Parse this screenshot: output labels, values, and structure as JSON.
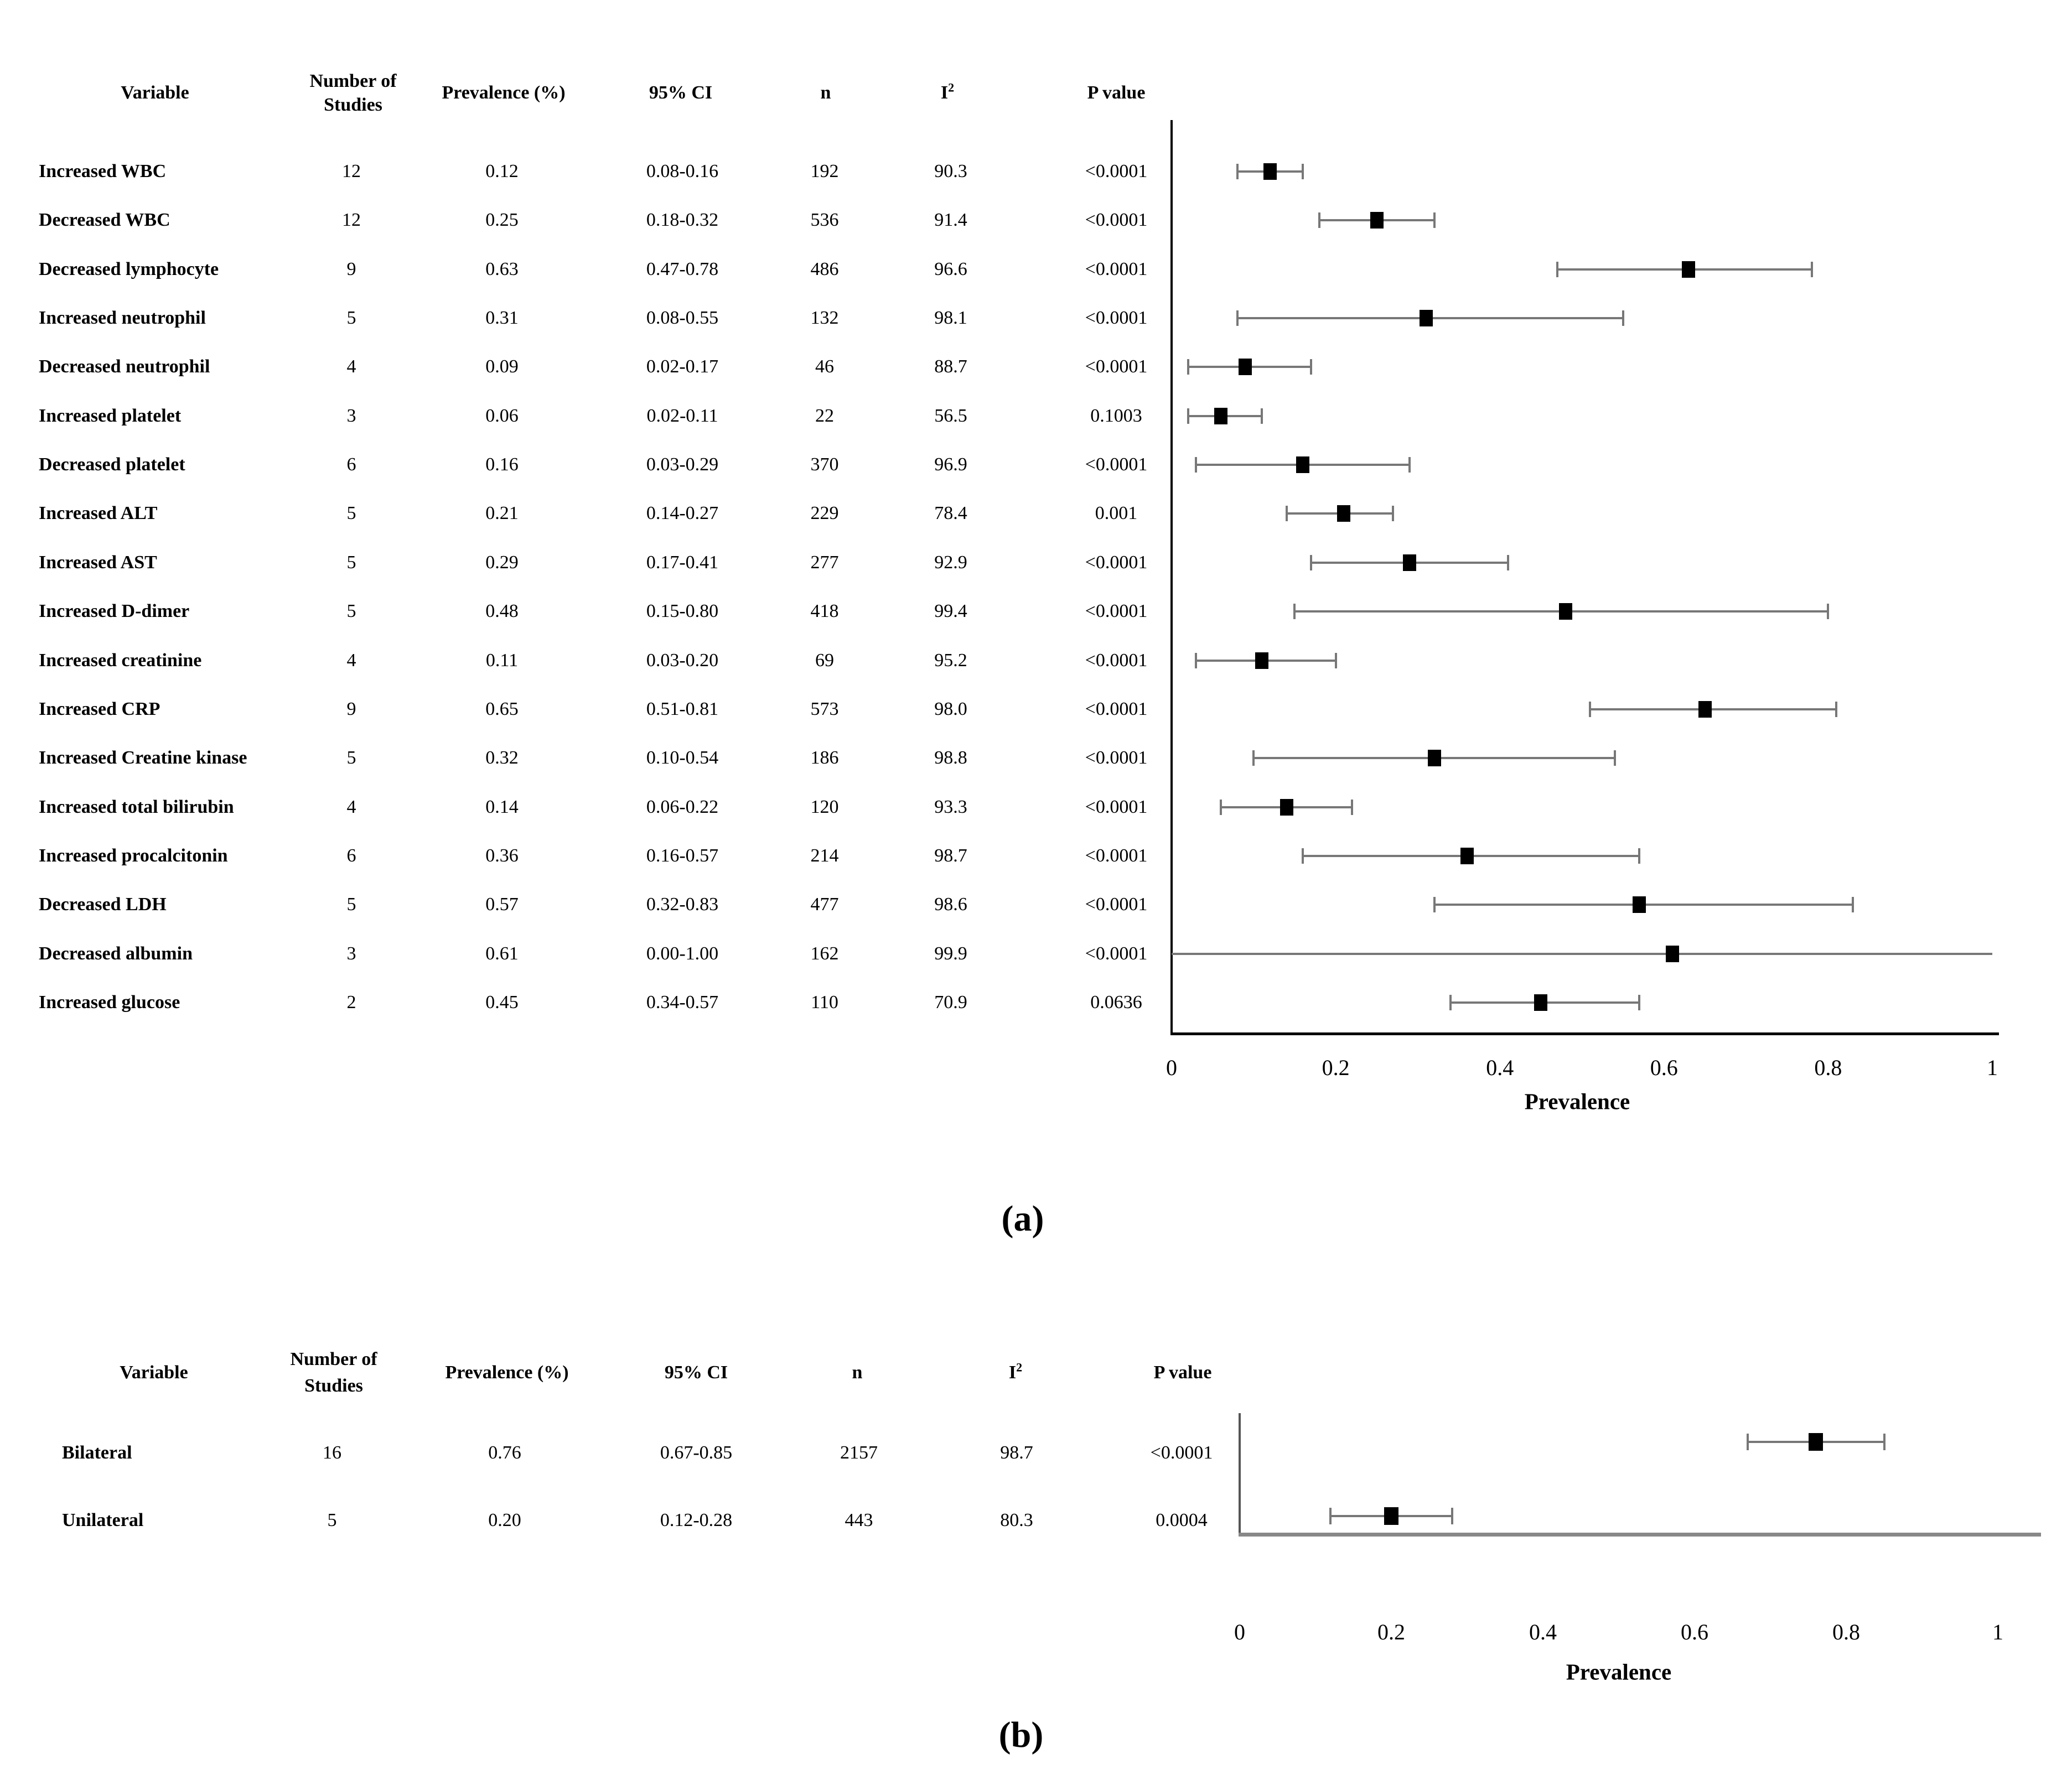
{
  "figure": {
    "xlabel_a": "Prevalence",
    "xlabel_b": "Prevalence",
    "caption_a": "(a)",
    "caption_b": "(b)"
  },
  "colors": {
    "text": "#000000",
    "marker": "#000000",
    "error_bar": "#777777",
    "axis_a": "#000000",
    "spine_a": "#000000",
    "axis_b": "#888888",
    "spine_b": "#555555"
  },
  "chart_data": [
    {
      "type": "forest",
      "caption": "(a)",
      "xlabel": "Prevalence",
      "xlim": [
        0,
        1
      ],
      "xticks": [
        "0",
        "0.2",
        "0.4",
        "0.6",
        "0.8",
        "1"
      ],
      "legend": "none",
      "grid": false,
      "headers": [
        {
          "label": "Variable"
        },
        {
          "label": "Number of",
          "label2": "Studies"
        },
        {
          "label": "Prevalence (%)"
        },
        {
          "label": "95% CI"
        },
        {
          "label": "n"
        },
        {
          "label": "I",
          "sup": "2"
        },
        {
          "label": "P value"
        }
      ],
      "rows": [
        {
          "variable": "Increased WBC",
          "studies": "12",
          "prevalence": "0.12",
          "ci": "0.08-0.16",
          "n": "192",
          "i2": "90.3",
          "p": "<0.0001",
          "est": 0.12,
          "lo": 0.08,
          "hi": 0.16,
          "full_line": false
        },
        {
          "variable": "Decreased WBC",
          "studies": "12",
          "prevalence": "0.25",
          "ci": "0.18-0.32",
          "n": "536",
          "i2": "91.4",
          "p": "<0.0001",
          "est": 0.25,
          "lo": 0.18,
          "hi": 0.32,
          "full_line": false
        },
        {
          "variable": "Decreased lymphocyte",
          "studies": "9",
          "prevalence": "0.63",
          "ci": "0.47-0.78",
          "n": "486",
          "i2": "96.6",
          "p": "<0.0001",
          "est": 0.63,
          "lo": 0.47,
          "hi": 0.78,
          "full_line": false
        },
        {
          "variable": "Increased neutrophil",
          "studies": "5",
          "prevalence": "0.31",
          "ci": "0.08-0.55",
          "n": "132",
          "i2": "98.1",
          "p": "<0.0001",
          "est": 0.31,
          "lo": 0.08,
          "hi": 0.55,
          "full_line": false
        },
        {
          "variable": "Decreased neutrophil",
          "studies": "4",
          "prevalence": "0.09",
          "ci": "0.02-0.17",
          "n": "46",
          "i2": "88.7",
          "p": "<0.0001",
          "est": 0.09,
          "lo": 0.02,
          "hi": 0.17,
          "full_line": false
        },
        {
          "variable": "Increased platelet",
          "studies": "3",
          "prevalence": "0.06",
          "ci": "0.02-0.11",
          "n": "22",
          "i2": "56.5",
          "p": "0.1003",
          "est": 0.06,
          "lo": 0.02,
          "hi": 0.11,
          "full_line": false
        },
        {
          "variable": "Decreased platelet",
          "studies": "6",
          "prevalence": "0.16",
          "ci": "0.03-0.29",
          "n": "370",
          "i2": "96.9",
          "p": "<0.0001",
          "est": 0.16,
          "lo": 0.03,
          "hi": 0.29,
          "full_line": false
        },
        {
          "variable": "Increased ALT",
          "studies": "5",
          "prevalence": "0.21",
          "ci": "0.14-0.27",
          "n": "229",
          "i2": "78.4",
          "p": "0.001",
          "est": 0.21,
          "lo": 0.14,
          "hi": 0.27,
          "full_line": false
        },
        {
          "variable": "Increased AST",
          "studies": "5",
          "prevalence": "0.29",
          "ci": "0.17-0.41",
          "n": "277",
          "i2": "92.9",
          "p": "<0.0001",
          "est": 0.29,
          "lo": 0.17,
          "hi": 0.41,
          "full_line": false
        },
        {
          "variable": "Increased D-dimer",
          "studies": "5",
          "prevalence": "0.48",
          "ci": "0.15-0.80",
          "n": "418",
          "i2": "99.4",
          "p": "<0.0001",
          "est": 0.48,
          "lo": 0.15,
          "hi": 0.8,
          "full_line": false
        },
        {
          "variable": "Increased creatinine",
          "studies": "4",
          "prevalence": "0.11",
          "ci": "0.03-0.20",
          "n": "69",
          "i2": "95.2",
          "p": "<0.0001",
          "est": 0.11,
          "lo": 0.03,
          "hi": 0.2,
          "full_line": false
        },
        {
          "variable": "Increased CRP",
          "studies": "9",
          "prevalence": "0.65",
          "ci": "0.51-0.81",
          "n": "573",
          "i2": "98.0",
          "p": "<0.0001",
          "est": 0.65,
          "lo": 0.51,
          "hi": 0.81,
          "full_line": false
        },
        {
          "variable": "Increased Creatine kinase",
          "studies": "5",
          "prevalence": "0.32",
          "ci": "0.10-0.54",
          "n": "186",
          "i2": "98.8",
          "p": "<0.0001",
          "est": 0.32,
          "lo": 0.1,
          "hi": 0.54,
          "full_line": false
        },
        {
          "variable": "Increased total bilirubin",
          "studies": "4",
          "prevalence": "0.14",
          "ci": "0.06-0.22",
          "n": "120",
          "i2": "93.3",
          "p": "<0.0001",
          "est": 0.14,
          "lo": 0.06,
          "hi": 0.22,
          "full_line": false
        },
        {
          "variable": "Increased procalcitonin",
          "studies": "6",
          "prevalence": "0.36",
          "ci": "0.16-0.57",
          "n": "214",
          "i2": "98.7",
          "p": "<0.0001",
          "est": 0.36,
          "lo": 0.16,
          "hi": 0.57,
          "full_line": false
        },
        {
          "variable": "Decreased LDH",
          "studies": "5",
          "prevalence": "0.57",
          "ci": "0.32-0.83",
          "n": "477",
          "i2": "98.6",
          "p": "<0.0001",
          "est": 0.57,
          "lo": 0.32,
          "hi": 0.83,
          "full_line": false
        },
        {
          "variable": "Decreased albumin",
          "studies": "3",
          "prevalence": "0.61",
          "ci": "0.00-1.00",
          "n": "162",
          "i2": "99.9",
          "p": "<0.0001",
          "est": 0.61,
          "lo": 0.0,
          "hi": 1.0,
          "full_line": true
        },
        {
          "variable": "Increased glucose",
          "studies": "2",
          "prevalence": "0.45",
          "ci": "0.34-0.57",
          "n": "110",
          "i2": "70.9",
          "p": "0.0636",
          "est": 0.45,
          "lo": 0.34,
          "hi": 0.57,
          "full_line": false
        }
      ]
    },
    {
      "type": "forest",
      "caption": "(b)",
      "xlabel": "Prevalence",
      "xlim": [
        0,
        1
      ],
      "xticks": [
        "0",
        "0.2",
        "0.4",
        "0.6",
        "0.8",
        "1"
      ],
      "legend": "none",
      "grid": false,
      "headers": [
        {
          "label": "Variable"
        },
        {
          "label": "Number of",
          "label2": "Studies"
        },
        {
          "label": "Prevalence (%)"
        },
        {
          "label": "95% CI"
        },
        {
          "label": "n"
        },
        {
          "label": "I",
          "sup": "2"
        },
        {
          "label": "P value"
        }
      ],
      "rows": [
        {
          "variable": "Bilateral",
          "studies": "16",
          "prevalence": "0.76",
          "ci": "0.67-0.85",
          "n": "2157",
          "i2": "98.7",
          "p": "<0.0001",
          "est": 0.76,
          "lo": 0.67,
          "hi": 0.85,
          "full_line": false
        },
        {
          "variable": "Unilateral",
          "studies": "5",
          "prevalence": "0.20",
          "ci": "0.12-0.28",
          "n": "443",
          "i2": "80.3",
          "p": "0.0004",
          "est": 0.2,
          "lo": 0.12,
          "hi": 0.28,
          "full_line": false
        }
      ]
    }
  ]
}
